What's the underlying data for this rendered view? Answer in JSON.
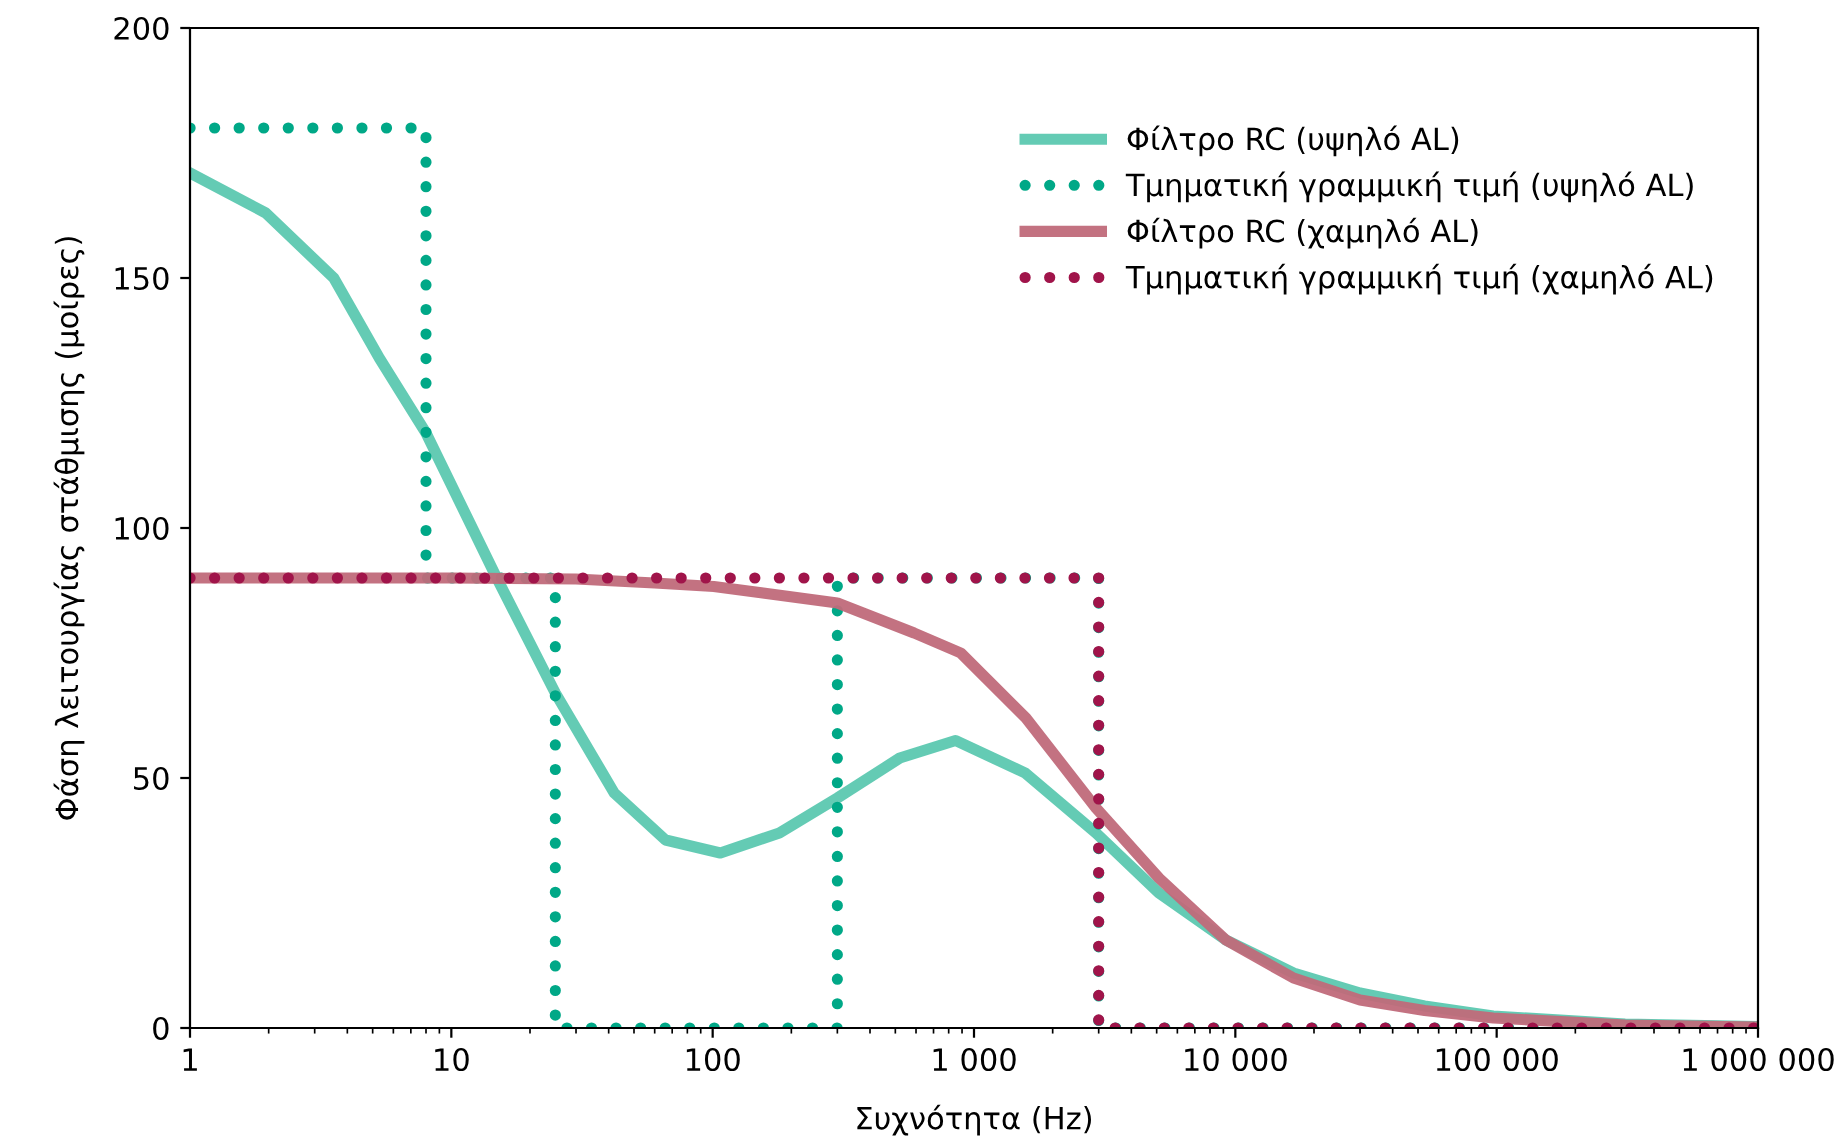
{
  "chart_data": {
    "type": "line",
    "xlabel": "Συχνότητα (Hz)",
    "ylabel": "Φάση λειτουργίας στάθμισης (μοίρες)",
    "log": "x",
    "xlim": [
      1,
      1000000
    ],
    "ylim": [
      0,
      200
    ],
    "xticks": [
      1,
      10,
      100,
      {
        "value": 1000,
        "label": "1 000"
      },
      {
        "value": 10000,
        "label": "10 000"
      },
      {
        "value": 100000,
        "label": "100 000"
      },
      {
        "value": 1000000,
        "label": "1 000 000"
      }
    ],
    "yticks": [
      0,
      50,
      100,
      150,
      200
    ],
    "grid": false,
    "legend": "top right",
    "series": [
      {
        "name": "Φίλτρο RC (υψηλό AL)",
        "color": "#5cc8b0",
        "line_style": "solid",
        "x": [
          1,
          1.95,
          3.55,
          5.3,
          8,
          14.6,
          25,
          42,
          66,
          107,
          180,
          300,
          520,
          850,
          1570,
          2930,
          5100,
          9200,
          16700,
          30000,
          53000,
          97000,
          310000,
          1000000
        ],
        "values": [
          171,
          163,
          150,
          134,
          119,
          91,
          67,
          47,
          37.6,
          35,
          39,
          46,
          54,
          57.5,
          51,
          39,
          27,
          17.6,
          11,
          7,
          4.4,
          2.4,
          0.8,
          0.3
        ]
      },
      {
        "name": "Τμηματική γραμμική τιμή (υψηλό AL)",
        "color": "#00a887",
        "line_style": "dotted",
        "x": [
          1,
          8,
          8,
          25,
          25,
          300,
          300,
          3000,
          3000,
          1000000
        ],
        "values": [
          180,
          180,
          90,
          90,
          0,
          0,
          90,
          90,
          0,
          0
        ]
      },
      {
        "name": "Φίλτρο RC (χαμηλό AL)",
        "color": "#c06a7a",
        "line_style": "solid",
        "x": [
          1,
          10,
          30,
          60,
          101,
          300,
          590,
          890,
          1580,
          2930,
          5100,
          9200,
          16700,
          30000,
          53000,
          97000,
          310000,
          1000000
        ],
        "values": [
          90,
          90,
          89.8,
          89,
          88.3,
          85,
          79,
          75,
          62,
          44,
          30,
          17.6,
          10,
          5.6,
          3.5,
          2,
          0.6,
          0.2
        ]
      },
      {
        "name": "Τμηματική γραμμική τιμή (χαμηλό AL)",
        "color": "#a0144a",
        "line_style": "dotted",
        "x": [
          1,
          3000,
          3000,
          1000000
        ],
        "values": [
          90,
          90,
          0,
          0
        ]
      }
    ]
  }
}
